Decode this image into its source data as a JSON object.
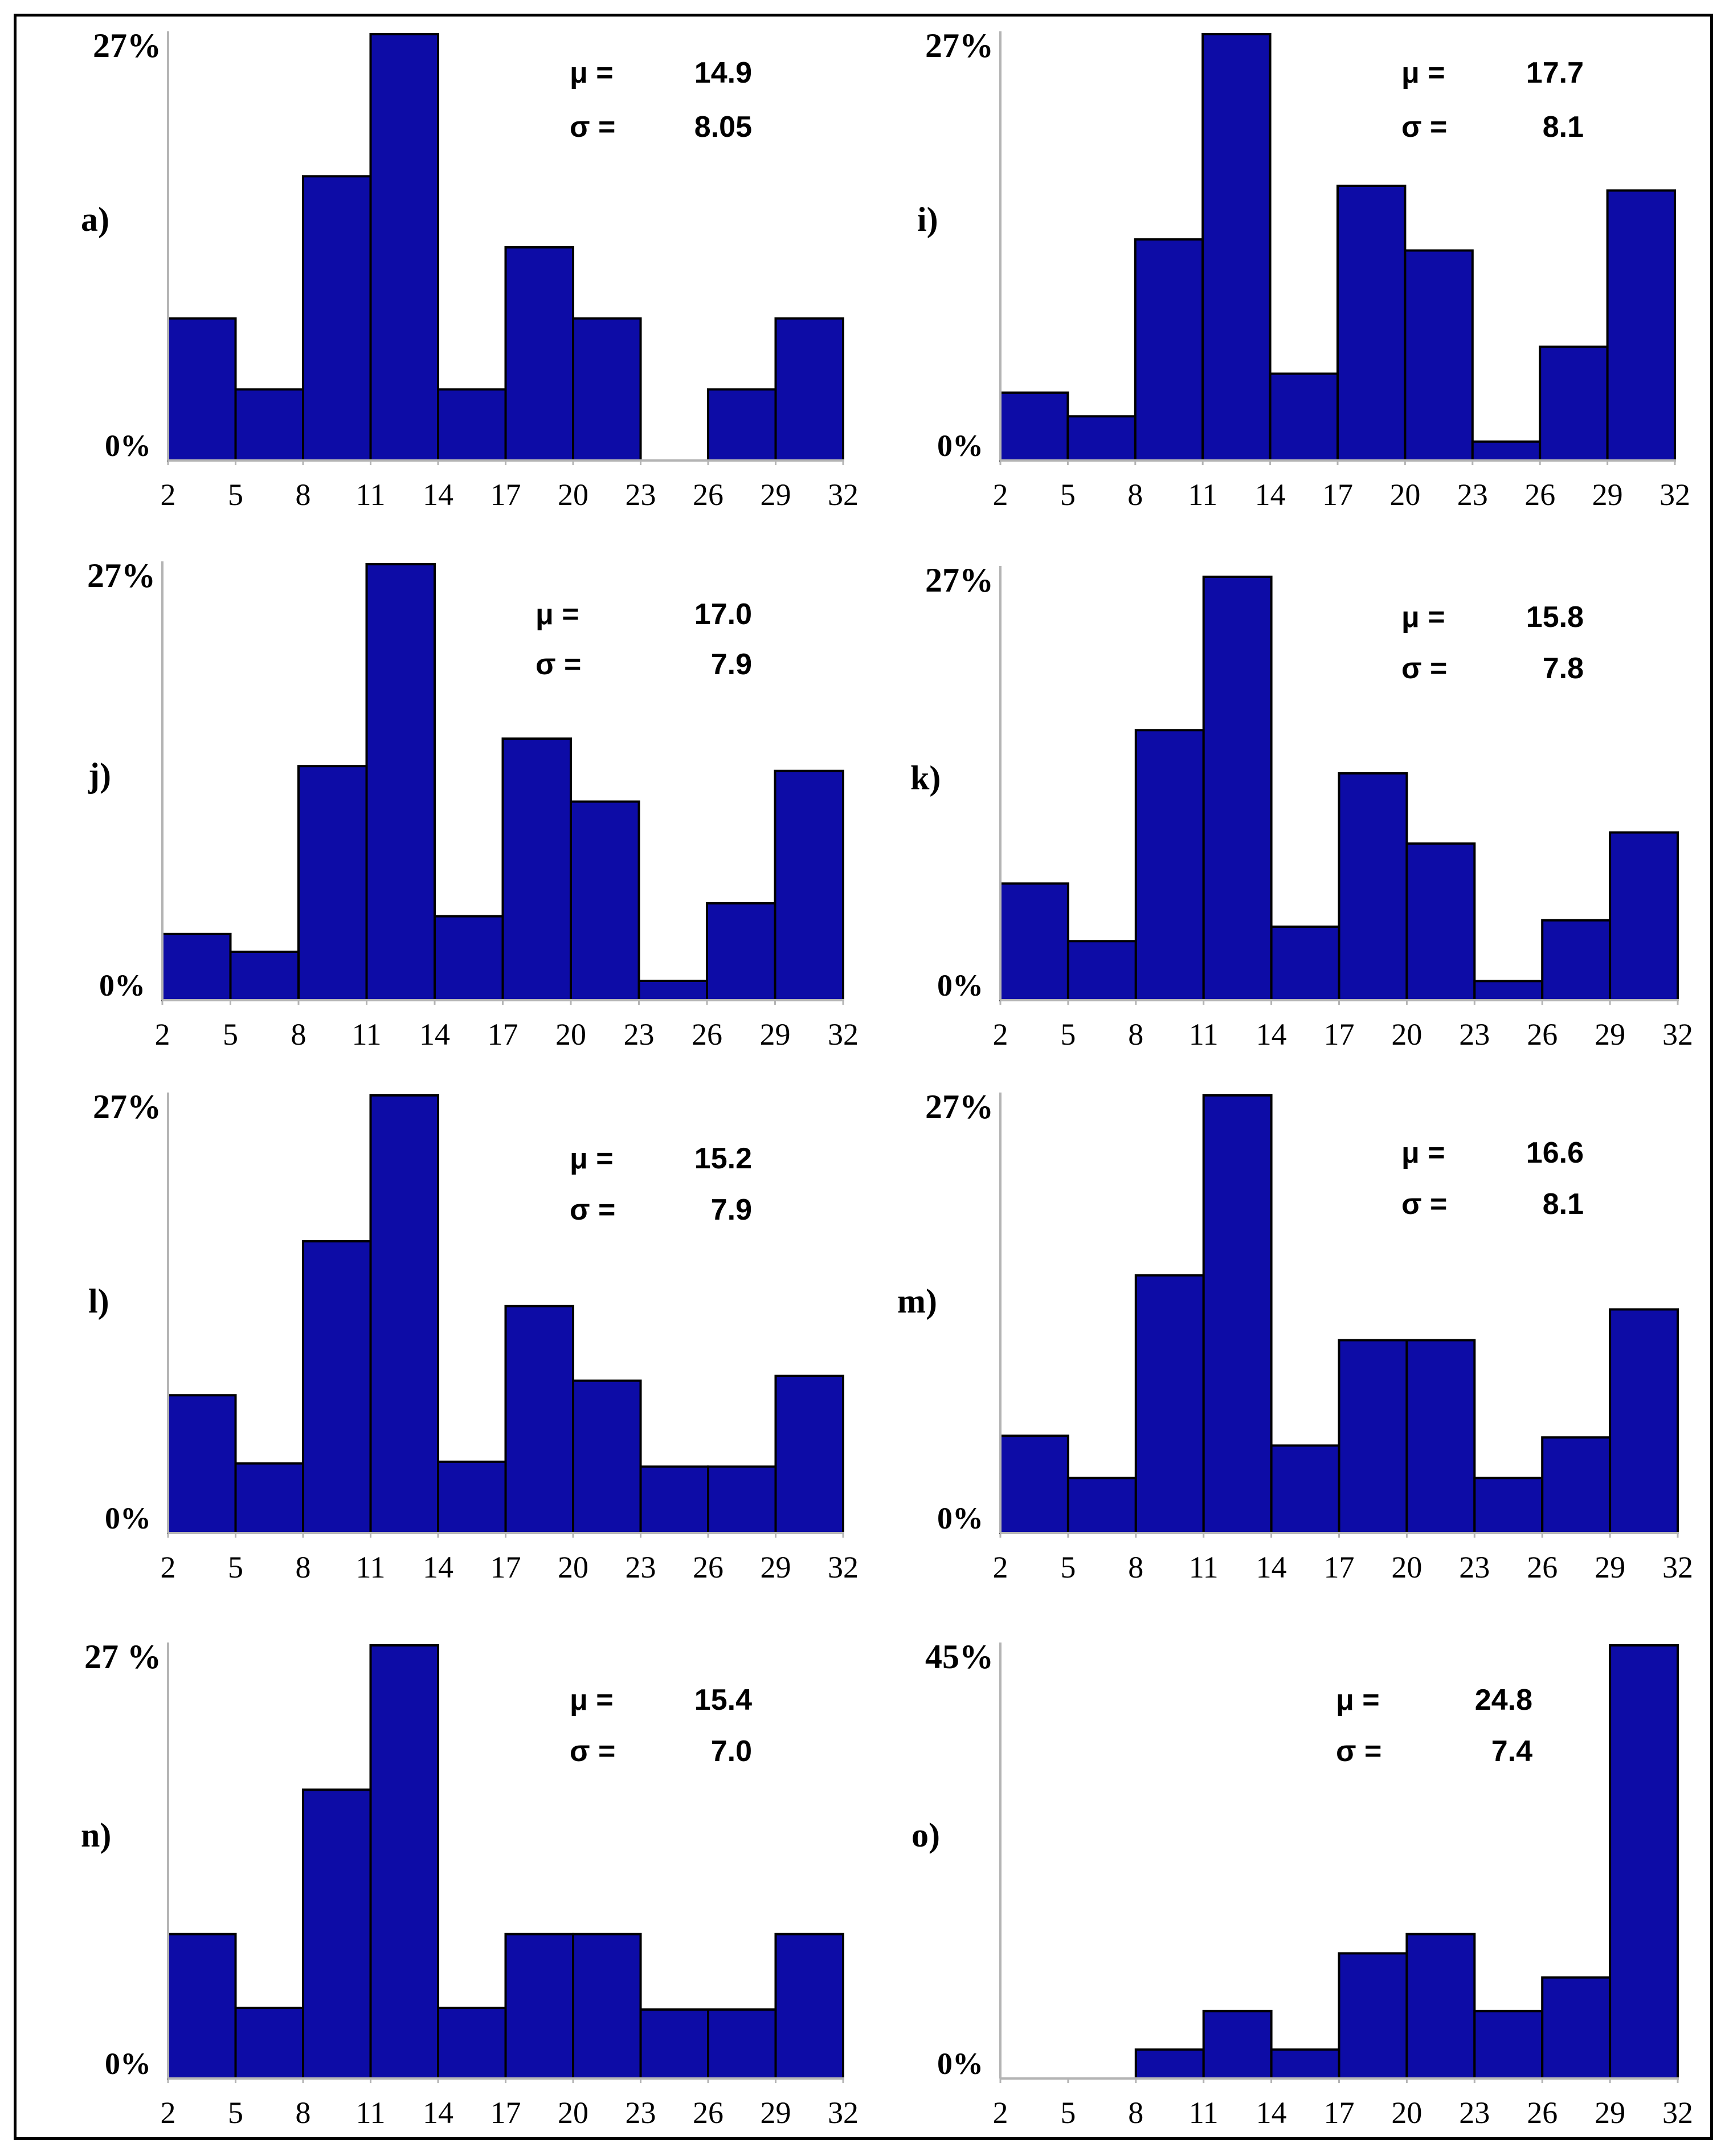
{
  "chart_data": [
    {
      "type": "bar",
      "panel_label": "a)",
      "y_max_label": "27%",
      "y_min_label": "0%",
      "ylim": [
        0,
        27
      ],
      "bin_edges": [
        "2",
        "5",
        "8",
        "11",
        "14",
        "17",
        "20",
        "23",
        "26",
        "29",
        "32"
      ],
      "values": [
        9,
        4.5,
        18,
        27,
        4.5,
        13.5,
        9,
        0,
        4.5,
        9
      ],
      "stats": {
        "mu_label": "μ =",
        "mu": "14.9",
        "sigma_label": "σ =",
        "sigma": "8.05"
      }
    },
    {
      "type": "bar",
      "panel_label": "i)",
      "y_max_label": "27%",
      "y_min_label": "0%",
      "ylim": [
        0,
        27
      ],
      "bin_edges": [
        "2",
        "5",
        "8",
        "11",
        "14",
        "17",
        "20",
        "23",
        "26",
        "29",
        "32"
      ],
      "values": [
        4.3,
        2.8,
        14,
        27,
        5.5,
        17.4,
        13.3,
        1.2,
        7.2,
        17.1
      ],
      "stats": {
        "mu_label": "μ =",
        "mu": "17.7",
        "sigma_label": "σ =",
        "sigma": "8.1"
      }
    },
    {
      "type": "bar",
      "panel_label": "j)",
      "y_max_label": "27%",
      "y_min_label": "0%",
      "ylim": [
        0,
        27
      ],
      "bin_edges": [
        "2",
        "5",
        "8",
        "11",
        "14",
        "17",
        "20",
        "23",
        "26",
        "29",
        "32"
      ],
      "values": [
        4.1,
        3,
        14.5,
        27,
        5.2,
        16.2,
        12.3,
        1.2,
        6,
        14.2
      ],
      "stats": {
        "mu_label": "μ =",
        "mu": "17.0",
        "sigma_label": "σ =",
        "sigma": "7.9"
      }
    },
    {
      "type": "bar",
      "panel_label": "k)",
      "y_max_label": "27%",
      "y_min_label": "0%",
      "ylim": [
        0,
        27
      ],
      "bin_edges": [
        "2",
        "5",
        "8",
        "11",
        "14",
        "17",
        "20",
        "23",
        "26",
        "29",
        "32"
      ],
      "values": [
        7.3,
        3.7,
        16.9,
        26.5,
        4.6,
        14.2,
        9.8,
        1.2,
        5,
        10.5
      ],
      "stats": {
        "mu_label": "μ =",
        "mu": "15.8",
        "sigma_label": "σ =",
        "sigma": "7.8"
      }
    },
    {
      "type": "bar",
      "panel_label": "l)",
      "y_max_label": "27%",
      "y_min_label": "0%",
      "ylim": [
        0,
        27
      ],
      "bin_edges": [
        "2",
        "5",
        "8",
        "11",
        "14",
        "17",
        "20",
        "23",
        "26",
        "29",
        "32"
      ],
      "values": [
        8.5,
        4.3,
        18,
        27,
        4.4,
        14,
        9.4,
        4.1,
        4.1,
        9.7
      ],
      "stats": {
        "mu_label": "μ =",
        "mu": "15.2",
        "sigma_label": "σ =",
        "sigma": "7.9"
      }
    },
    {
      "type": "bar",
      "panel_label": "m)",
      "y_max_label": "27%",
      "y_min_label": "0%",
      "ylim": [
        0,
        27
      ],
      "bin_edges": [
        "2",
        "5",
        "8",
        "11",
        "14",
        "17",
        "20",
        "23",
        "26",
        "29",
        "32"
      ],
      "values": [
        6,
        3.4,
        15.9,
        27,
        5.4,
        11.9,
        11.9,
        3.4,
        5.9,
        13.8
      ],
      "stats": {
        "mu_label": "μ =",
        "mu": "16.6",
        "sigma_label": "σ =",
        "sigma": "8.1"
      }
    },
    {
      "type": "bar",
      "panel_label": "n)",
      "y_max_label": "27 %",
      "y_min_label": "0%",
      "ylim": [
        0,
        27
      ],
      "bin_edges": [
        "2",
        "5",
        "8",
        "11",
        "14",
        "17",
        "20",
        "23",
        "26",
        "29",
        "32"
      ],
      "values": [
        9,
        4.4,
        18,
        27,
        4.4,
        9,
        9,
        4.3,
        4.3,
        9
      ],
      "stats": {
        "mu_label": "μ =",
        "mu": "15.4",
        "sigma_label": "σ =",
        "sigma": "7.0"
      }
    },
    {
      "type": "bar",
      "panel_label": "o)",
      "y_max_label": "45%",
      "y_min_label": "0%",
      "ylim": [
        0,
        45
      ],
      "bin_edges": [
        "2",
        "5",
        "8",
        "11",
        "14",
        "17",
        "20",
        "23",
        "26",
        "29",
        "32"
      ],
      "values": [
        0,
        0,
        3,
        7,
        3,
        13,
        15,
        7,
        10.5,
        45
      ],
      "stats": {
        "mu_label": "μ =",
        "mu": "24.8",
        "sigma_label": "σ =",
        "sigma": "7.4"
      }
    }
  ],
  "colors": {
    "bar_fill": "#0d0ca6",
    "bar_stroke": "#000000",
    "axis": "#b4b4b4",
    "text": "#000000"
  }
}
